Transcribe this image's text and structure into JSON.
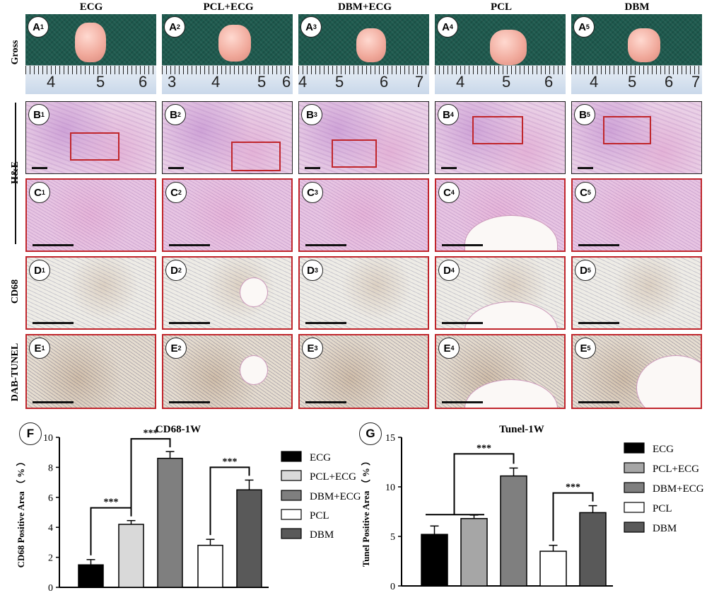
{
  "columns": [
    "ECG",
    "PCL+ECG",
    "DBM+ECG",
    "PCL",
    "DBM"
  ],
  "rows": {
    "gross": "Gross",
    "he": "H&E",
    "cd68": "CD68",
    "tunel": "DAB-TUNEL"
  },
  "ruler_numbers": [
    [
      "4",
      "5",
      "6"
    ],
    [
      "3",
      "4",
      "5",
      "6"
    ],
    [
      "4",
      "5",
      "6",
      "7"
    ],
    [
      "4",
      "5",
      "6"
    ],
    [
      "4",
      "5",
      "6",
      "7"
    ]
  ],
  "panel_letters": [
    "A",
    "B",
    "C",
    "D",
    "E"
  ],
  "panel_indices": [
    "1",
    "2",
    "3",
    "4",
    "5"
  ],
  "chart_labels": {
    "f": "F",
    "g": "G"
  },
  "chart_data": [
    {
      "type": "bar",
      "title": "CD68-1W",
      "ylabel": "CD68 Positive Area （ % ）",
      "categories": [
        "ECG",
        "PCL+ECG",
        "DBM+ECG",
        "PCL",
        "DBM"
      ],
      "values": [
        1.5,
        4.2,
        8.6,
        2.8,
        6.5
      ],
      "errors": [
        0.35,
        0.25,
        0.45,
        0.4,
        0.65
      ],
      "colors": [
        "#000000",
        "#d9d9d9",
        "#7f7f7f",
        "#ffffff",
        "#595959"
      ],
      "yticks": [
        "0",
        "2",
        "4",
        "6",
        "8",
        "10"
      ],
      "ylim": [
        0,
        10
      ],
      "significance": [
        {
          "from": 0,
          "to": 1,
          "label": "***"
        },
        {
          "from": 1,
          "to": 2,
          "label": "***"
        },
        {
          "from": 3,
          "to": 4,
          "label": "***"
        }
      ],
      "legend": [
        "ECG",
        "PCL+ECG",
        "DBM+ECG",
        "PCL",
        "DBM"
      ]
    },
    {
      "type": "bar",
      "title": "Tunel-1W",
      "ylabel": "Tunel Positive Area （ % ）",
      "categories": [
        "ECG",
        "PCL+ECG",
        "DBM+ECG",
        "PCL",
        "DBM"
      ],
      "values": [
        5.2,
        6.8,
        11.1,
        3.5,
        7.4
      ],
      "errors": [
        0.85,
        0.35,
        0.8,
        0.6,
        0.7
      ],
      "colors": [
        "#000000",
        "#a6a6a6",
        "#7f7f7f",
        "#ffffff",
        "#595959"
      ],
      "yticks": [
        "0",
        "5",
        "10",
        "15"
      ],
      "ylim": [
        0,
        15
      ],
      "significance": [
        {
          "from": "0-1",
          "to": 2,
          "label": "***"
        },
        {
          "from": 3,
          "to": 4,
          "label": "***"
        }
      ],
      "legend": [
        "ECG",
        "PCL+ECG",
        "DBM+ECG",
        "PCL",
        "DBM"
      ]
    }
  ]
}
